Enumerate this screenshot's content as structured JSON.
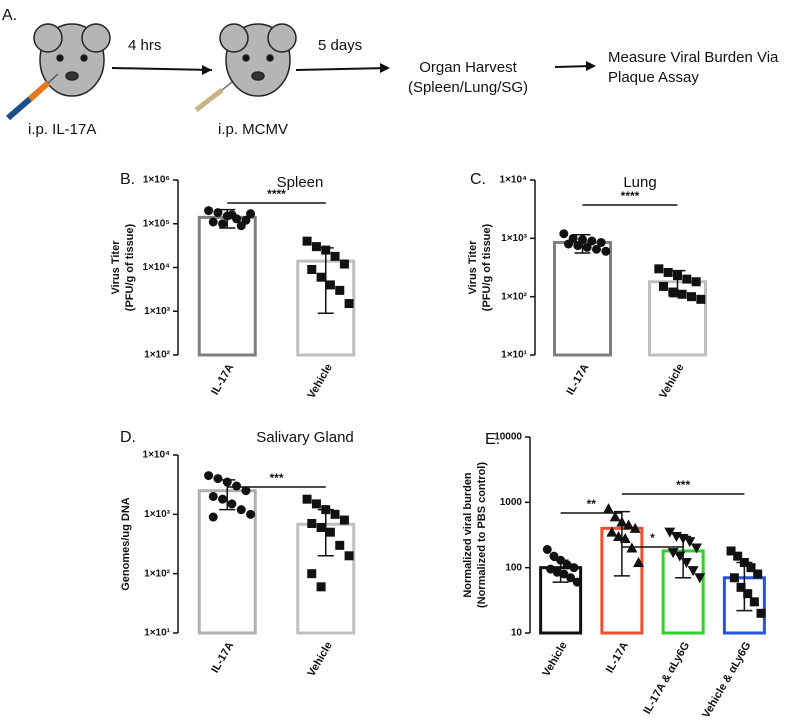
{
  "panel_a": {
    "label": "A.",
    "step1": "i.p. IL-17A",
    "arrow1": "4  hrs",
    "step2": "i.p. MCMV",
    "arrow2": "5 days",
    "step3": [
      "Organ Harvest",
      "(Spleen/Lung/SG)"
    ],
    "step4": [
      "Measure Viral Burden Via",
      "Plaque Assay"
    ]
  },
  "chart_data": [
    {
      "type": "bar",
      "panel_label": "B.",
      "title": "Spleen",
      "ylabel": [
        "Virus Titer",
        "(PFU/g of tissue)"
      ],
      "yscale": "log",
      "ylim": [
        100,
        1000000
      ],
      "yticks": [
        {
          "value": 100,
          "label": "1×10²"
        },
        {
          "value": 1000,
          "label": "1×10³"
        },
        {
          "value": 10000,
          "label": "1×10⁴"
        },
        {
          "value": 100000,
          "label": "1×10⁵"
        },
        {
          "value": 1000000,
          "label": "1×10⁶"
        }
      ],
      "categories": [
        "IL-17A",
        "Vehicle"
      ],
      "values": [
        140000,
        14000
      ],
      "error_low": [
        80000,
        900
      ],
      "error_high": [
        210000,
        28000
      ],
      "points": [
        [
          200000,
          180000,
          150000,
          130000,
          120000,
          110000,
          100000,
          160000,
          90000,
          170000
        ],
        [
          40000,
          30000,
          25000,
          18000,
          12000,
          9000,
          6000,
          4000,
          3000,
          1500
        ]
      ],
      "colors": [
        "#7f7f7f",
        "#bfbfbf"
      ],
      "markers": [
        "circle",
        "square"
      ],
      "annotations": [
        {
          "text": "****",
          "between": [
            "IL-17A",
            "Vehicle"
          ]
        }
      ]
    },
    {
      "type": "bar",
      "panel_label": "C.",
      "title": "Lung",
      "ylabel": [
        "Virus Titer",
        "(PFU/g of tissue)"
      ],
      "yscale": "log",
      "ylim": [
        10,
        10000
      ],
      "yticks": [
        {
          "value": 10,
          "label": "1×10¹"
        },
        {
          "value": 100,
          "label": "1×10²"
        },
        {
          "value": 1000,
          "label": "1×10³"
        },
        {
          "value": 10000,
          "label": "1×10⁴"
        }
      ],
      "categories": [
        "IL-17A",
        "Vehicle"
      ],
      "values": [
        850,
        180
      ],
      "error_low": [
        560,
        100
      ],
      "error_high": [
        1150,
        280
      ],
      "points": [
        [
          1200,
          1000,
          950,
          900,
          850,
          800,
          750,
          700,
          650,
          600
        ],
        [
          300,
          260,
          230,
          200,
          180,
          150,
          120,
          110,
          100,
          90
        ]
      ],
      "colors": [
        "#7f7f7f",
        "#bfbfbf"
      ],
      "markers": [
        "circle",
        "square"
      ],
      "annotations": [
        {
          "text": "****",
          "between": [
            "IL-17A",
            "Vehicle"
          ]
        }
      ]
    },
    {
      "type": "bar",
      "panel_label": "D.",
      "title": "Salivary Gland",
      "ylabel": [
        "Genomes/ug DNA"
      ],
      "yscale": "log",
      "ylim": [
        10,
        10000
      ],
      "yticks": [
        {
          "value": 10,
          "label": "1×10¹"
        },
        {
          "value": 100,
          "label": "1×10²"
        },
        {
          "value": 1000,
          "label": "1×10³"
        },
        {
          "value": 10000,
          "label": "1×10⁴"
        }
      ],
      "categories": [
        "IL-17A",
        "Vehicle"
      ],
      "values": [
        2500,
        680
      ],
      "error_low": [
        1200,
        200
      ],
      "error_high": [
        3800,
        1200
      ],
      "points": [
        [
          4500,
          4000,
          3500,
          3000,
          2500,
          2000,
          1800,
          1500,
          1200,
          1000,
          900
        ],
        [
          1800,
          1500,
          1200,
          1000,
          800,
          700,
          600,
          500,
          300,
          200,
          100,
          60
        ]
      ],
      "colors": [
        "#b0b0b0",
        "#c0c0c0"
      ],
      "markers": [
        "circle",
        "square"
      ],
      "annotations": [
        {
          "text": "***",
          "between": [
            "IL-17A",
            "Vehicle"
          ]
        }
      ]
    },
    {
      "type": "bar",
      "panel_label": "E.",
      "ylabel": [
        "Normalized viral burden",
        "(Normalized to PBS control)"
      ],
      "yscale": "log",
      "ylim": [
        10,
        10000
      ],
      "yticks": [
        10,
        100,
        1000,
        10000
      ],
      "categories": [
        "Vehicle",
        "IL-17A",
        "IL-17A & αLy6G",
        "Vehicle & αLy6G"
      ],
      "values": [
        100,
        400,
        180,
        70
      ],
      "error_low": [
        60,
        75,
        70,
        22
      ],
      "error_high": [
        130,
        720,
        300,
        120
      ],
      "points": [
        [
          190,
          150,
          130,
          110,
          100,
          95,
          85,
          80,
          70,
          60
        ],
        [
          800,
          600,
          500,
          450,
          400,
          350,
          300,
          280,
          200,
          120
        ],
        [
          350,
          300,
          280,
          250,
          200,
          170,
          150,
          120,
          90,
          70
        ],
        [
          180,
          150,
          120,
          100,
          80,
          70,
          50,
          40,
          30,
          20
        ]
      ],
      "colors": [
        "#111111",
        "#f0502d",
        "#2fd12f",
        "#2456e0"
      ],
      "markers": [
        "circle",
        "triangle",
        "triangle-down",
        "square"
      ],
      "annotations": [
        {
          "text": "**",
          "between": [
            "Vehicle",
            "IL-17A"
          ]
        },
        {
          "text": "*",
          "between": [
            "IL-17A",
            "IL-17A & αLy6G"
          ]
        },
        {
          "text": "***",
          "between": [
            "IL-17A",
            "Vehicle & αLy6G"
          ]
        }
      ]
    }
  ]
}
